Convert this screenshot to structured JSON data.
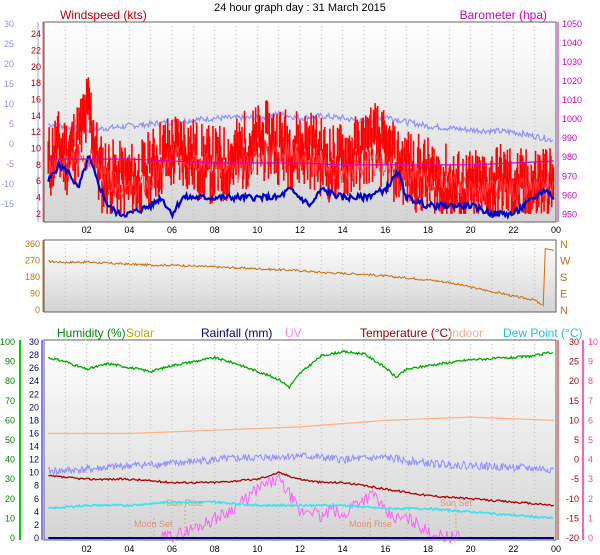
{
  "title": "24 hour graph day : 31 March 2015",
  "x_tick_labels": [
    "02",
    "04",
    "06",
    "08",
    "10",
    "12",
    "14",
    "16",
    "18",
    "20",
    "22",
    "00"
  ],
  "colors": {
    "wind": "#e00000",
    "gust_band": "#ff0000",
    "avg_wind": "#0000cc",
    "pressure": "#cc00cc",
    "temp_axis": "#a0a0ff",
    "direction": "#c87010",
    "humidity": "#00aa00",
    "solar": "#ffb020",
    "rain": "#000080",
    "uv": "#ff60ff",
    "temperature": "#b00000",
    "indoor": "#ffb080",
    "dewpoint": "#40e0f0",
    "apparent": "#9090ff"
  },
  "chart_data": [
    {
      "type": "line",
      "title": "24 hour graph day : 31 March 2015",
      "legend": [
        "Windspeed (kts)",
        "Barometer (hpa)"
      ],
      "left_axis": {
        "label": "Windspeed (kts)",
        "ticks": [
          "2",
          "4",
          "6",
          "8",
          "10",
          "12",
          "14",
          "16",
          "18",
          "20",
          "22",
          "24"
        ],
        "range": [
          1,
          25.5
        ]
      },
      "far_left_axis": {
        "ticks": [
          "-15",
          "-10",
          "-5",
          "0",
          "5",
          "10",
          "15",
          "20",
          "25",
          "30"
        ],
        "range": [
          -19.5,
          30.5
        ]
      },
      "right_axis": {
        "label": "Barometer (hpa)",
        "ticks": [
          "950",
          "960",
          "970",
          "980",
          "990",
          "1000",
          "1010",
          "1020",
          "1030",
          "1040",
          "1050"
        ],
        "range": [
          946,
          1051
        ]
      },
      "x_range_hours": [
        0,
        24
      ],
      "series": [
        {
          "name": "Windspeed (kts)",
          "x": [
            0.2,
            1,
            1.5,
            2,
            2.5,
            3,
            4,
            5,
            6,
            7,
            8,
            9,
            10,
            11,
            12,
            13,
            14,
            15,
            16,
            17,
            18,
            19,
            20,
            21,
            22,
            23,
            23.9
          ],
          "values": [
            7,
            8,
            9,
            9,
            8,
            6,
            5,
            6,
            9,
            9,
            8,
            7,
            9,
            10,
            9,
            8,
            7,
            8,
            8,
            7,
            6,
            6,
            5,
            5,
            5,
            5,
            5
          ]
        },
        {
          "name": "gust",
          "x": [
            0.2,
            0.6,
            1.1,
            1.6,
            2.1,
            2.6,
            3.5,
            4.5,
            5.5,
            6.5,
            7.5,
            8.5,
            9.5,
            10.5,
            11.5,
            12.5,
            13.5,
            14.5,
            15.5,
            16.5,
            17.5,
            18.5,
            19.5,
            20.5,
            21.5,
            22.5,
            23.5,
            23.9
          ],
          "values": [
            10,
            12,
            11,
            13,
            17,
            9,
            8,
            8,
            11,
            12,
            10,
            10,
            12,
            13,
            12,
            12,
            10,
            11,
            13,
            10,
            9,
            8,
            7,
            7,
            8,
            7,
            8,
            7
          ]
        },
        {
          "name": "avg wind",
          "x": [
            0.2,
            0.7,
            1.2,
            1.6,
            2.1,
            2.5,
            3,
            3.5,
            4,
            5,
            5.5,
            6,
            6.5,
            7,
            8,
            9,
            10,
            11,
            11.5,
            12,
            12.5,
            13,
            14,
            15,
            16,
            16.6,
            17,
            18,
            19,
            20,
            21,
            22,
            23,
            23.5,
            23.9
          ],
          "values": [
            6,
            8,
            7,
            5,
            9,
            6,
            3,
            2,
            2,
            3,
            4,
            2,
            4,
            4,
            4,
            4,
            4,
            4,
            5,
            4,
            3,
            5,
            4,
            4,
            5,
            7,
            4,
            3,
            3,
            3,
            2,
            2,
            4,
            5,
            4
          ]
        },
        {
          "name": "Barometer (hpa)",
          "x": [
            0.2,
            2,
            4,
            6,
            8,
            10,
            12,
            14,
            16,
            18,
            20,
            22,
            23.9
          ],
          "values": [
            979,
            979,
            979,
            978,
            977,
            977,
            977,
            976,
            976,
            976,
            976,
            977,
            978
          ]
        },
        {
          "name": "temperature (far-left axis)",
          "x": [
            0.2,
            2,
            4,
            6,
            8,
            10,
            11,
            12,
            13,
            14,
            15,
            16,
            17,
            18,
            20,
            22,
            23.9
          ],
          "values": [
            5,
            3.5,
            4.5,
            5.5,
            6.5,
            6.5,
            7.5,
            6.5,
            7,
            6.5,
            5.5,
            7,
            5.5,
            4.5,
            3.5,
            3,
            1
          ]
        }
      ]
    },
    {
      "type": "line",
      "left_axis": {
        "ticks": [
          "0",
          "90",
          "180",
          "270",
          "360"
        ],
        "range": [
          0,
          360
        ]
      },
      "right_axis": {
        "ticks": [
          "N",
          "E",
          "S",
          "W",
          "N"
        ]
      },
      "x_range_hours": [
        0,
        24
      ],
      "series": [
        {
          "name": "wind direction",
          "x": [
            0.2,
            1,
            2,
            3,
            4,
            5,
            6,
            7,
            8,
            9,
            10,
            11,
            12,
            13,
            14,
            15,
            16,
            17,
            18,
            19,
            20,
            21,
            21.5,
            22,
            22.5,
            23,
            23.4,
            23.5,
            23.9
          ],
          "values": [
            265,
            260,
            262,
            255,
            250,
            245,
            245,
            240,
            235,
            230,
            225,
            220,
            215,
            205,
            200,
            195,
            185,
            175,
            165,
            150,
            125,
            100,
            90,
            75,
            65,
            55,
            20,
            335,
            325
          ]
        }
      ]
    },
    {
      "type": "line",
      "legend": [
        "Humidity (%)",
        "Solar",
        "Rainfall (mm)",
        "UV",
        "Temperature (°C)",
        "Indoor",
        "Dew Point (°C)"
      ],
      "humidity_axis": {
        "ticks": [
          "0",
          "10",
          "20",
          "30",
          "40",
          "50",
          "60",
          "70",
          "80",
          "90",
          "100"
        ],
        "range": [
          0,
          100
        ]
      },
      "left_axis": {
        "ticks": [
          "0",
          "2",
          "4",
          "6",
          "8",
          "10",
          "12",
          "14",
          "16",
          "18",
          "20",
          "22",
          "24",
          "26",
          "28",
          "30"
        ],
        "range": [
          0,
          30
        ]
      },
      "right_axis": {
        "ticks": [
          "-20",
          "-15",
          "-10",
          "-5",
          "0",
          "5",
          "10",
          "15",
          "20",
          "25",
          "30"
        ],
        "range": [
          -20,
          30
        ]
      },
      "uv_axis": {
        "ticks": [
          "0",
          "1",
          "2",
          "3",
          "4",
          "5",
          "6",
          "7",
          "8",
          "9",
          "10"
        ],
        "range": [
          0,
          10
        ]
      },
      "x_range_hours": [
        0,
        24
      ],
      "annotations": [
        "Moon Set",
        "Sun Rise",
        "Moon Rise",
        "Sun Set"
      ],
      "series": [
        {
          "name": "Humidity (%)",
          "x": [
            0.2,
            1,
            2,
            3,
            4,
            5,
            6,
            7,
            8,
            9,
            10,
            11,
            11.5,
            12,
            13,
            14,
            15,
            16,
            16.5,
            17,
            18,
            20,
            22,
            23,
            23.9
          ],
          "values": [
            92,
            90,
            86,
            89,
            87,
            85,
            88,
            90,
            92,
            89,
            85,
            81,
            77,
            84,
            93,
            95,
            94,
            87,
            82,
            86,
            88,
            91,
            92,
            93,
            95
          ]
        },
        {
          "name": "Temperature (°C)",
          "x": [
            0.2,
            2,
            4,
            6,
            8,
            10,
            11,
            12,
            13,
            14,
            15,
            16,
            17,
            18,
            20,
            22,
            23.9
          ],
          "values": [
            9.5,
            9,
            9,
            8.5,
            8.5,
            9,
            10,
            9,
            8.5,
            8.5,
            8,
            7.5,
            7,
            6.5,
            6,
            5.5,
            5
          ]
        },
        {
          "name": "Indoor",
          "x": [
            0.2,
            4,
            8,
            12,
            16,
            20,
            23.9
          ],
          "values": [
            16,
            16,
            16.5,
            17,
            18,
            18.5,
            18
          ]
        },
        {
          "name": "Dew Point (°C)",
          "x": [
            0.2,
            2,
            4,
            6,
            8,
            10,
            12,
            14,
            16,
            18,
            20,
            22,
            23.9
          ],
          "values": [
            4.5,
            5,
            5,
            5.5,
            5.5,
            5,
            5,
            5,
            4.5,
            4.5,
            4,
            3.5,
            3
          ]
        },
        {
          "name": "apparent temperature",
          "x": [
            0.2,
            2,
            4,
            6,
            8,
            10,
            12,
            14,
            16,
            18,
            20,
            22,
            23.9
          ],
          "values": [
            -3,
            -2.5,
            -1.5,
            -1,
            0,
            0.5,
            1,
            0,
            0.5,
            -1,
            -1.5,
            -2,
            -2.5
          ]
        },
        {
          "name": "Solar",
          "x": [
            5.5,
            6.5,
            7.5,
            8.5,
            9.5,
            10,
            10.5,
            11,
            11.5,
            12,
            12.5,
            13,
            13.5,
            14,
            14.5,
            15,
            15.5,
            16,
            16.5,
            17,
            17.5,
            18,
            18.5,
            19.5
          ],
          "values": [
            0,
            1,
            3,
            5,
            8,
            10,
            11,
            12,
            9,
            5,
            6,
            4,
            6,
            4,
            7,
            8,
            9,
            5,
            4,
            4,
            3,
            1,
            0.5,
            0
          ]
        },
        {
          "name": "Rainfall (mm)",
          "x": [
            0.2,
            23.9
          ],
          "values": [
            0,
            0
          ]
        }
      ]
    }
  ]
}
